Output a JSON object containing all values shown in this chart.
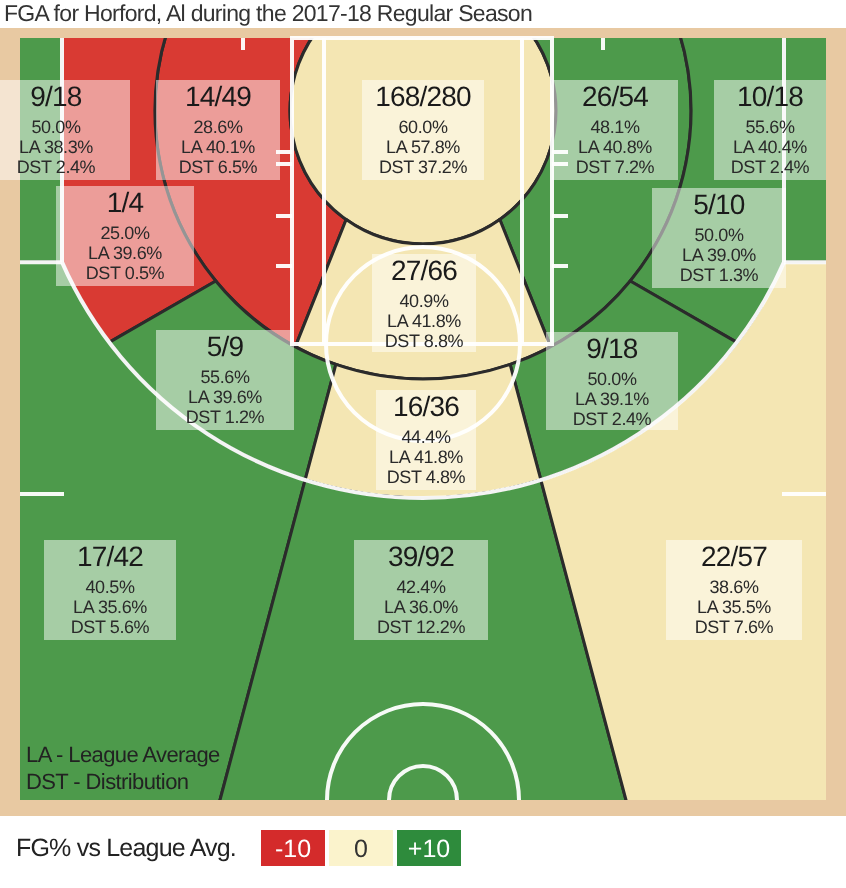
{
  "chart_data": [
    {
      "type": "other",
      "title": "FGA for Horford, Al during the 2017-18 Regular Season",
      "categories": [
        "9/18",
        "14/49",
        "168/280",
        "26/54",
        "10/18",
        "1/4",
        "5/10",
        "27/66",
        "5/9",
        "9/18",
        "16/36",
        "17/42",
        "39/92",
        "22/57"
      ],
      "series": [
        {
          "colors": [
            "#4d9a4b",
            "#d93a33",
            "#f4e6b3",
            "#4d9a4b",
            "#4d9a4b",
            "#d93a33",
            "#4d9a4b",
            "#f4e6b3",
            "#4d9a4b",
            "#4d9a4b",
            "#f4e6b3",
            "#4d9a4b",
            "#4d9a4b",
            "#f4e6b3"
          ],
          "values": [
            50.0,
            28.6,
            60.0,
            48.1,
            55.6,
            25.0,
            50.0,
            40.9,
            55.6,
            50.0,
            44.4,
            40.5,
            42.4,
            38.6
          ],
          "value_labels": [
            "50.0%",
            "28.6%",
            "60.0%",
            "48.1%",
            "55.6%",
            "25.0%",
            "50.0%",
            "40.9%",
            "55.6%",
            "50.0%",
            "44.4%",
            "40.5%",
            "42.4%",
            "38.6%"
          ]
        },
        {
          "colors": [
            "#4d9a4b",
            "#d93a33",
            "#f4e6b3",
            "#4d9a4b",
            "#4d9a4b",
            "#d93a33",
            "#4d9a4b",
            "#f4e6b3",
            "#4d9a4b",
            "#4d9a4b",
            "#f4e6b3",
            "#4d9a4b",
            "#4d9a4b",
            "#f4e6b3"
          ],
          "values": [
            38.3,
            40.1,
            57.8,
            40.8,
            40.4,
            39.6,
            39.0,
            41.8,
            39.6,
            39.1,
            41.8,
            35.6,
            36.0,
            35.5
          ],
          "value_labels": [
            "LA 38.3%",
            "LA 40.1%",
            "LA 57.8%",
            "LA 40.8%",
            "LA 40.4%",
            "LA 39.6%",
            "LA 39.0%",
            "LA 41.8%",
            "LA 39.6%",
            "LA 39.1%",
            "LA 41.8%",
            "LA 35.6%",
            "LA 36.0%",
            "LA 35.5%"
          ]
        },
        {
          "colors": [
            "#4d9a4b",
            "#d93a33",
            "#f4e6b3",
            "#4d9a4b",
            "#4d9a4b",
            "#d93a33",
            "#4d9a4b",
            "#f4e6b3",
            "#4d9a4b",
            "#4d9a4b",
            "#f4e6b3",
            "#4d9a4b",
            "#4d9a4b",
            "#f4e6b3"
          ],
          "values": [
            2.4,
            6.5,
            37.2,
            7.2,
            2.4,
            0.5,
            1.3,
            8.8,
            1.2,
            2.4,
            4.8,
            5.6,
            12.2,
            7.6
          ],
          "value_labels": [
            "DST 2.4%",
            "DST 6.5%",
            "DST 37.2%",
            "DST 7.2%",
            "DST 2.4%",
            "DST 0.5%",
            "DST 1.3%",
            "DST 8.8%",
            "DST 1.2%",
            "DST 2.4%",
            "DST 4.8%",
            "DST 5.6%",
            "DST 12.2%",
            "DST 7.6%"
          ]
        }
      ],
      "annotations": [
        "LA - League Average",
        "DST - Distribution"
      ]
    },
    {
      "type": "other",
      "title": "FG% vs League Avg.",
      "categories": [
        "-10",
        "0",
        "+10"
      ],
      "colors": [
        "#d42b2b",
        "#fbf3cc",
        "#2e8b3c"
      ]
    }
  ]
}
